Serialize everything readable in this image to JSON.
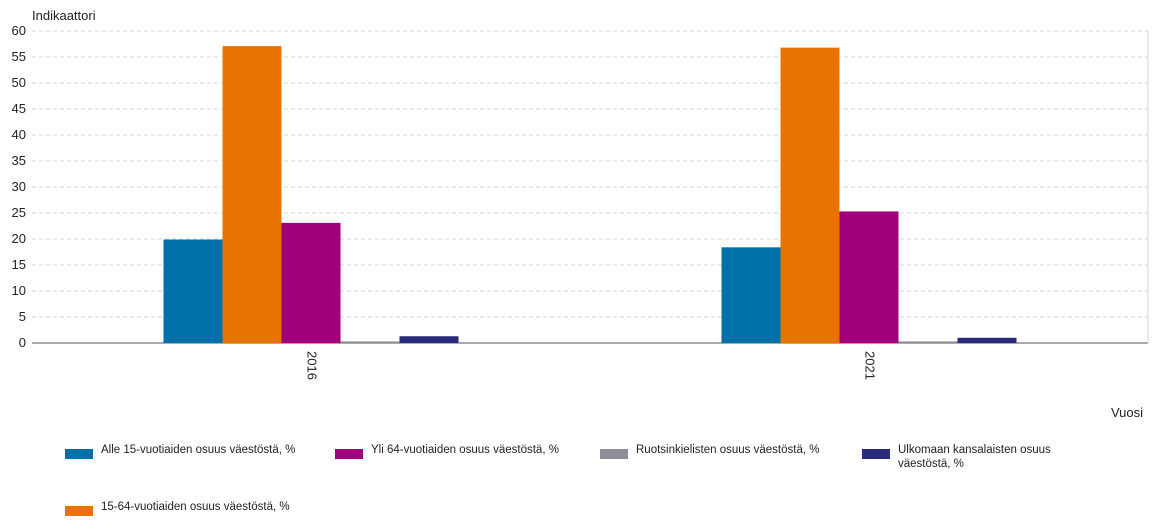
{
  "chart_data": {
    "type": "bar",
    "ylabel": "Indikaattori",
    "xlabel": "Vuosi",
    "ylim": [
      0,
      60
    ],
    "yticks": [
      0,
      5,
      10,
      15,
      20,
      25,
      30,
      35,
      40,
      45,
      50,
      55,
      60
    ],
    "grid": true,
    "legend_position": "bottom",
    "categories": [
      "2016",
      "2021"
    ],
    "series": [
      {
        "name": "Alle 15-vuotiaiden osuus väestöstä, %",
        "color": "#0070a8",
        "values": [
          19.9,
          18.4
        ]
      },
      {
        "name": "15-64-vuotiaiden osuus väestöstä, %",
        "color": "#e87400",
        "values": [
          57.1,
          56.8
        ]
      },
      {
        "name": "Yli 64-vuotiaiden osuus väestöstä, %",
        "color": "#a0007a",
        "values": [
          23.1,
          25.3
        ]
      },
      {
        "name": "Ruotsinkielisten osuus väestöstä, %",
        "color": "#8e8e98",
        "values": [
          0.3,
          0.3
        ]
      },
      {
        "name": "Ulkomaan kansalaisten osuus väestöstä, %",
        "color": "#2a2a7a",
        "values": [
          1.3,
          1.0
        ]
      }
    ]
  }
}
